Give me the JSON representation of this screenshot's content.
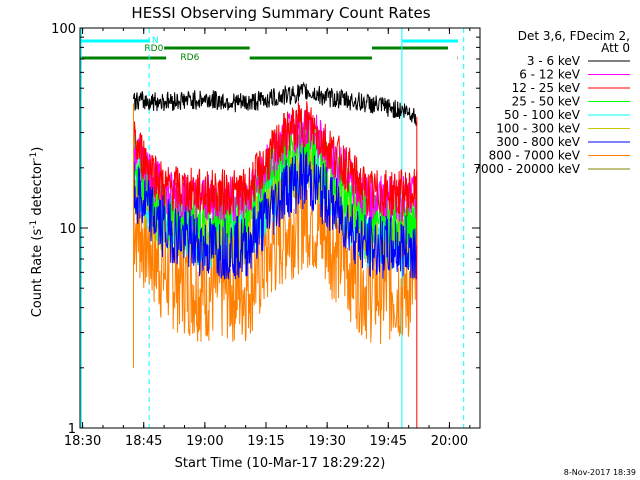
{
  "chart_data": {
    "type": "line",
    "title": "HESSI Observing Summary Count Rates",
    "xlabel": "Start Time (10-Mar-17 18:29:22)",
    "ylabel_main": "Count Rate (s",
    "ylabel_sup": "-1",
    "ylabel_tail": " detector",
    "ylabel_sup2": "-1",
    "ylabel_end": ")",
    "y_scale": "log",
    "ylim": [
      1,
      100
    ],
    "xlim": [
      "18:29:22",
      "20:07:30"
    ],
    "x_ticks": [
      "18:30",
      "18:45",
      "19:00",
      "19:15",
      "19:30",
      "19:45",
      "20:00"
    ],
    "y_ticks": [
      "1",
      "10",
      "100"
    ],
    "footer": "8-Nov-2017 18:39",
    "legend": {
      "header_line1": "Det 3,6, FDecim 2,",
      "header_line2": "Att 0",
      "placement": "right"
    },
    "series": [
      {
        "name": "3 - 6 keV",
        "color": "#000000",
        "values": [
          [
            "18:42:30",
            43
          ],
          [
            "18:50",
            43
          ],
          [
            "19:00",
            44
          ],
          [
            "19:10",
            42
          ],
          [
            "19:20",
            46
          ],
          [
            "19:25",
            48
          ],
          [
            "19:30",
            45
          ],
          [
            "19:40",
            42
          ],
          [
            "19:50",
            38
          ],
          [
            "19:52",
            36
          ]
        ]
      },
      {
        "name": "6 - 12 keV",
        "color": "#ff00ff",
        "values": [
          [
            "18:42:30",
            25
          ],
          [
            "18:50",
            15
          ],
          [
            "19:00",
            14
          ],
          [
            "19:10",
            14
          ],
          [
            "19:20",
            28
          ],
          [
            "19:25",
            33
          ],
          [
            "19:30",
            24
          ],
          [
            "19:40",
            14
          ],
          [
            "19:50",
            14
          ],
          [
            "19:52",
            14
          ]
        ]
      },
      {
        "name": "12 - 25 keV",
        "color": "#ff0000",
        "values": [
          [
            "18:42:30",
            27
          ],
          [
            "18:50",
            16
          ],
          [
            "19:00",
            15
          ],
          [
            "19:10",
            15
          ],
          [
            "19:20",
            30
          ],
          [
            "19:25",
            34
          ],
          [
            "19:30",
            26
          ],
          [
            "19:40",
            15
          ],
          [
            "19:50",
            15
          ],
          [
            "19:52",
            15
          ]
        ]
      },
      {
        "name": "25 - 50 keV",
        "color": "#00ff00",
        "values": [
          [
            "18:42:30",
            22
          ],
          [
            "18:50",
            12
          ],
          [
            "19:00",
            11
          ],
          [
            "19:10",
            12
          ],
          [
            "19:20",
            24
          ],
          [
            "19:25",
            28
          ],
          [
            "19:30",
            20
          ],
          [
            "19:40",
            11
          ],
          [
            "19:50",
            11
          ],
          [
            "19:52",
            11
          ]
        ]
      },
      {
        "name": "50 - 100 keV",
        "color": "#00ffff",
        "values": [
          [
            "18:42:30",
            18
          ],
          [
            "18:50",
            11
          ],
          [
            "19:00",
            9
          ],
          [
            "19:10",
            9
          ],
          [
            "19:20",
            20
          ],
          [
            "19:25",
            23
          ],
          [
            "19:30",
            17
          ],
          [
            "19:40",
            9
          ],
          [
            "19:50",
            9
          ],
          [
            "19:52",
            9
          ]
        ]
      },
      {
        "name": "100 - 300 keV",
        "color": "#c8c800",
        "values": [
          [
            "18:42:30",
            17
          ],
          [
            "18:50",
            10
          ],
          [
            "19:00",
            9
          ],
          [
            "19:10",
            9
          ],
          [
            "19:20",
            18
          ],
          [
            "19:25",
            21
          ],
          [
            "19:30",
            16
          ],
          [
            "19:40",
            9
          ],
          [
            "19:50",
            9
          ],
          [
            "19:52",
            9
          ]
        ]
      },
      {
        "name": "300 - 800 keV",
        "color": "#0000ff",
        "values": [
          [
            "18:42:30",
            15
          ],
          [
            "18:50",
            10
          ],
          [
            "19:00",
            8
          ],
          [
            "19:10",
            8
          ],
          [
            "19:20",
            16
          ],
          [
            "19:25",
            18
          ],
          [
            "19:30",
            14
          ],
          [
            "19:40",
            8
          ],
          [
            "19:50",
            8
          ],
          [
            "19:52",
            8
          ]
        ]
      },
      {
        "name": "800 - 7000 keV",
        "color": "#ff8000",
        "values": [
          [
            "18:42:30",
            11
          ],
          [
            "18:50",
            6
          ],
          [
            "19:00",
            5
          ],
          [
            "19:10",
            5
          ],
          [
            "19:20",
            10
          ],
          [
            "19:25",
            12
          ],
          [
            "19:30",
            9
          ],
          [
            "19:40",
            5
          ],
          [
            "19:50",
            5
          ],
          [
            "19:52",
            5
          ]
        ]
      },
      {
        "name": "7000 - 20000 keV",
        "color": "#808000",
        "values": []
      }
    ],
    "status_bars": {
      "N_label": "N",
      "RD0_label": "RD0",
      "RD6_label": "RD6",
      "N_color": "#00ffff",
      "RD_color": "#008000"
    },
    "vertical_lines_color": "#00ffff"
  }
}
